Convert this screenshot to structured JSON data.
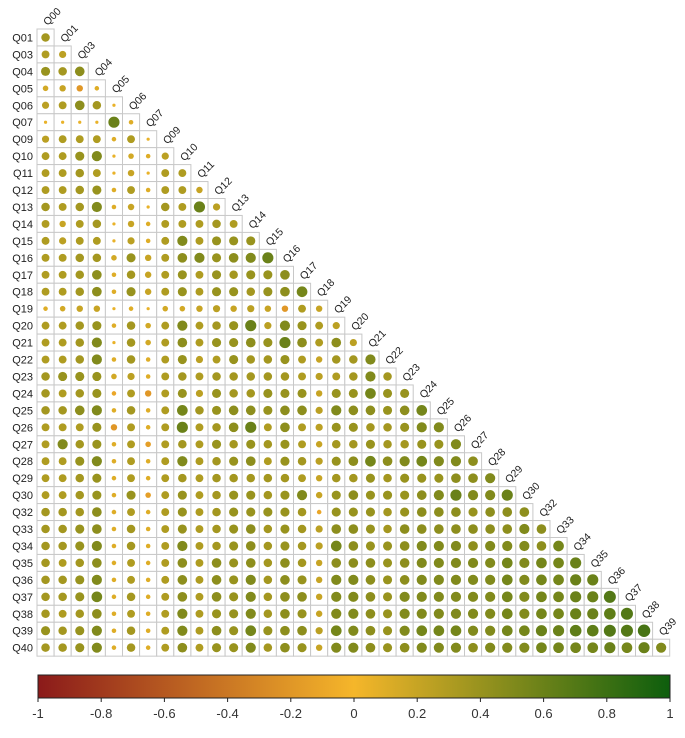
{
  "chart_data": {
    "type": "heatmap",
    "subtype": "correlation-matrix-lower-triangle",
    "marker": "circle-size-and-color",
    "rows": [
      "Q01",
      "Q03",
      "Q04",
      "Q05",
      "Q06",
      "Q07",
      "Q09",
      "Q10",
      "Q11",
      "Q12",
      "Q13",
      "Q14",
      "Q15",
      "Q16",
      "Q17",
      "Q18",
      "Q19",
      "Q20",
      "Q21",
      "Q22",
      "Q23",
      "Q24",
      "Q25",
      "Q26",
      "Q27",
      "Q28",
      "Q29",
      "Q30",
      "Q32",
      "Q33",
      "Q34",
      "Q35",
      "Q36",
      "Q37",
      "Q38",
      "Q39",
      "Q40"
    ],
    "columns": [
      "Q00",
      "Q01",
      "Q03",
      "Q04",
      "Q05",
      "Q06",
      "Q07",
      "Q09",
      "Q10",
      "Q11",
      "Q12",
      "Q13",
      "Q14",
      "Q15",
      "Q16",
      "Q17",
      "Q18",
      "Q19",
      "Q20",
      "Q21",
      "Q22",
      "Q23",
      "Q24",
      "Q25",
      "Q26",
      "Q27",
      "Q28",
      "Q29",
      "Q30",
      "Q32",
      "Q33",
      "Q34",
      "Q35",
      "Q36",
      "Q37",
      "Q38",
      "Q39"
    ],
    "values": [
      [
        0.35
      ],
      [
        0.3,
        0.25
      ],
      [
        0.4,
        0.35,
        0.45
      ],
      [
        0.15,
        0.2,
        -0.2,
        0.1
      ],
      [
        0.25,
        0.3,
        0.45,
        0.35,
        0.05
      ],
      [
        0.05,
        0.05,
        0.05,
        0.05,
        0.6,
        0.1
      ],
      [
        0.25,
        0.3,
        0.3,
        0.3,
        0.1,
        0.3,
        0.05
      ],
      [
        0.3,
        0.3,
        0.4,
        0.5,
        0.05,
        0.15,
        0.1,
        0.25
      ],
      [
        0.3,
        0.3,
        0.35,
        0.3,
        0.05,
        0.2,
        0.05,
        0.3,
        0.3
      ],
      [
        0.3,
        0.3,
        0.35,
        0.4,
        0.1,
        0.3,
        0.1,
        0.3,
        0.3,
        0.2
      ],
      [
        0.35,
        0.3,
        0.35,
        0.5,
        0.1,
        0.2,
        0.05,
        0.35,
        0.3,
        0.6,
        0.25
      ],
      [
        0.3,
        0.2,
        0.3,
        0.35,
        0.05,
        0.2,
        0.1,
        0.3,
        0.3,
        0.3,
        0.35,
        0.3
      ],
      [
        0.3,
        0.25,
        0.3,
        0.3,
        0.05,
        0.25,
        0.1,
        0.3,
        0.5,
        0.3,
        0.4,
        0.4,
        0.4
      ],
      [
        0.3,
        0.3,
        0.35,
        0.35,
        0.15,
        0.4,
        0.2,
        0.3,
        0.45,
        0.5,
        0.4,
        0.45,
        0.5,
        0.6
      ],
      [
        0.3,
        0.3,
        0.35,
        0.45,
        0.1,
        0.35,
        0.2,
        0.3,
        0.4,
        0.3,
        0.4,
        0.35,
        0.4,
        0.4,
        0.45
      ],
      [
        0.3,
        0.3,
        0.35,
        0.45,
        0.1,
        0.4,
        0.2,
        0.3,
        0.4,
        0.3,
        0.4,
        0.4,
        0.35,
        0.4,
        0.45,
        0.55
      ],
      [
        0.1,
        0.15,
        0.2,
        0.2,
        0.05,
        0.1,
        0.05,
        0.15,
        0.15,
        0.2,
        0.25,
        0.2,
        0.25,
        0.2,
        -0.2,
        0.3,
        0.2
      ],
      [
        0.3,
        0.3,
        0.35,
        0.4,
        0.1,
        0.35,
        0.15,
        0.3,
        0.5,
        0.3,
        0.35,
        0.4,
        0.6,
        0.25,
        0.5,
        0.4,
        0.3,
        0.25
      ],
      [
        0.3,
        0.3,
        0.35,
        0.5,
        0.05,
        0.35,
        0.15,
        0.3,
        0.45,
        0.3,
        0.4,
        0.4,
        0.45,
        0.4,
        0.6,
        0.45,
        0.3,
        0.45,
        0.25
      ],
      [
        0.3,
        0.3,
        0.35,
        0.5,
        0.1,
        0.35,
        0.1,
        0.3,
        0.4,
        0.25,
        0.3,
        0.4,
        0.35,
        0.35,
        0.4,
        0.3,
        0.2,
        0.35,
        0.35,
        0.5
      ],
      [
        0.35,
        0.4,
        0.4,
        0.4,
        0.15,
        0.25,
        0.1,
        0.3,
        0.35,
        0.3,
        0.35,
        0.35,
        0.35,
        0.35,
        0.35,
        0.3,
        0.25,
        0.3,
        0.35,
        0.5,
        0.35
      ],
      [
        0.35,
        0.3,
        0.35,
        0.4,
        -0.1,
        0.3,
        -0.2,
        0.3,
        0.4,
        0.25,
        0.4,
        0.35,
        0.35,
        0.4,
        0.4,
        0.4,
        0.2,
        0.4,
        0.4,
        0.55,
        0.4,
        0.4
      ],
      [
        0.35,
        0.35,
        0.45,
        0.5,
        0.1,
        0.35,
        0.1,
        0.3,
        0.55,
        0.35,
        0.4,
        0.45,
        0.45,
        0.4,
        0.45,
        0.45,
        0.25,
        0.5,
        0.45,
        0.45,
        0.4,
        0.45,
        0.55
      ],
      [
        0.3,
        0.3,
        0.3,
        0.4,
        -0.2,
        0.3,
        0.1,
        0.3,
        0.6,
        0.3,
        0.35,
        0.45,
        0.6,
        0.3,
        0.45,
        0.3,
        0.25,
        0.4,
        0.4,
        0.35,
        0.35,
        0.4,
        0.5,
        0.5
      ],
      [
        0.3,
        0.5,
        0.35,
        0.4,
        0.1,
        0.3,
        -0.15,
        0.3,
        0.35,
        0.3,
        0.4,
        0.35,
        0.4,
        0.35,
        0.4,
        0.3,
        0.2,
        0.35,
        0.35,
        0.4,
        0.35,
        0.35,
        0.4,
        0.4,
        0.5
      ],
      [
        0.3,
        0.3,
        0.4,
        0.5,
        0.1,
        0.3,
        0.1,
        0.3,
        0.5,
        0.3,
        0.35,
        0.4,
        0.45,
        0.3,
        0.4,
        0.35,
        0.25,
        0.4,
        0.45,
        0.55,
        0.45,
        0.5,
        0.55,
        0.5,
        0.5,
        0.45
      ],
      [
        0.3,
        0.3,
        0.35,
        0.4,
        0.1,
        0.3,
        0.1,
        0.3,
        0.35,
        0.3,
        0.35,
        0.35,
        0.35,
        0.35,
        0.35,
        0.3,
        0.2,
        0.35,
        0.35,
        0.4,
        0.35,
        0.4,
        0.4,
        0.4,
        0.45,
        0.45,
        0.5
      ],
      [
        0.3,
        0.3,
        0.35,
        0.4,
        0.1,
        0.4,
        -0.15,
        0.3,
        0.4,
        0.3,
        0.35,
        0.4,
        0.4,
        0.35,
        0.4,
        0.5,
        0.2,
        0.4,
        0.45,
        0.4,
        0.4,
        0.4,
        0.45,
        0.5,
        0.6,
        0.5,
        0.5,
        0.6
      ],
      [
        0.35,
        0.35,
        0.35,
        0.45,
        0.1,
        0.3,
        0.1,
        0.3,
        0.4,
        0.3,
        0.35,
        0.4,
        0.4,
        0.4,
        0.4,
        0.35,
        -0.1,
        0.4,
        0.4,
        0.4,
        0.35,
        0.4,
        0.45,
        0.45,
        0.45,
        0.4,
        0.45,
        0.45,
        0.45
      ],
      [
        0.35,
        0.35,
        0.4,
        0.45,
        0.1,
        0.35,
        0.1,
        0.3,
        0.4,
        0.3,
        0.35,
        0.4,
        0.45,
        0.35,
        0.4,
        0.35,
        0.25,
        0.45,
        0.45,
        0.4,
        0.35,
        0.45,
        0.45,
        0.45,
        0.45,
        0.45,
        0.45,
        0.45,
        0.5,
        0.45
      ],
      [
        0.35,
        0.35,
        0.4,
        0.5,
        0.1,
        0.35,
        0.1,
        0.3,
        0.5,
        0.3,
        0.35,
        0.4,
        0.45,
        0.35,
        0.4,
        0.35,
        0.25,
        0.55,
        0.45,
        0.4,
        0.4,
        0.45,
        0.5,
        0.5,
        0.5,
        0.45,
        0.5,
        0.5,
        0.5,
        0.45,
        0.55
      ],
      [
        0.35,
        0.3,
        0.35,
        0.45,
        0.1,
        0.3,
        0.1,
        0.3,
        0.45,
        0.3,
        0.45,
        0.4,
        0.45,
        0.35,
        0.45,
        0.35,
        0.2,
        0.45,
        0.45,
        0.45,
        0.4,
        0.45,
        0.5,
        0.5,
        0.5,
        0.5,
        0.5,
        0.55,
        0.5,
        0.55,
        0.55,
        0.6
      ],
      [
        0.35,
        0.35,
        0.4,
        0.5,
        0.1,
        0.3,
        0.1,
        0.3,
        0.45,
        0.3,
        0.45,
        0.4,
        0.5,
        0.35,
        0.45,
        0.4,
        0.2,
        0.5,
        0.5,
        0.45,
        0.4,
        0.45,
        0.5,
        0.5,
        0.5,
        0.5,
        0.5,
        0.55,
        0.5,
        0.55,
        0.55,
        0.6,
        0.6
      ],
      [
        0.35,
        0.35,
        0.4,
        0.55,
        0.1,
        0.35,
        0.1,
        0.3,
        0.45,
        0.3,
        0.45,
        0.4,
        0.5,
        0.35,
        0.45,
        0.45,
        0.2,
        0.5,
        0.5,
        0.45,
        0.4,
        0.5,
        0.5,
        0.5,
        0.5,
        0.5,
        0.5,
        0.55,
        0.5,
        0.55,
        0.55,
        0.6,
        0.6,
        0.7
      ],
      [
        0.35,
        0.3,
        0.35,
        0.45,
        0.1,
        0.3,
        0.1,
        0.3,
        0.5,
        0.3,
        0.4,
        0.4,
        0.5,
        0.35,
        0.45,
        0.4,
        0.2,
        0.5,
        0.5,
        0.45,
        0.4,
        0.5,
        0.5,
        0.5,
        0.5,
        0.5,
        0.5,
        0.55,
        0.5,
        0.55,
        0.55,
        0.6,
        0.6,
        0.65,
        0.7
      ],
      [
        0.4,
        0.35,
        0.4,
        0.5,
        0.1,
        0.35,
        0.1,
        0.3,
        0.5,
        0.3,
        0.45,
        0.4,
        0.55,
        0.4,
        0.45,
        0.45,
        0.25,
        0.55,
        0.5,
        0.45,
        0.4,
        0.5,
        0.55,
        0.55,
        0.55,
        0.5,
        0.5,
        0.55,
        0.55,
        0.6,
        0.6,
        0.65,
        0.65,
        0.7,
        0.7,
        0.75
      ],
      [
        0.35,
        0.35,
        0.4,
        0.5,
        0.1,
        0.35,
        0.1,
        0.3,
        0.45,
        0.3,
        0.4,
        0.4,
        0.5,
        0.35,
        0.45,
        0.4,
        0.2,
        0.5,
        0.5,
        0.45,
        0.4,
        0.45,
        0.5,
        0.5,
        0.5,
        0.45,
        0.5,
        0.5,
        0.5,
        0.55,
        0.55,
        0.55,
        0.55,
        0.6,
        0.55,
        0.6,
        0.5
      ]
    ],
    "color_scale": {
      "min": -1,
      "max": 1,
      "ticks": [
        "-1",
        "-0.8",
        "-0.6",
        "-0.4",
        "-0.2",
        "0",
        "0.2",
        "0.4",
        "0.6",
        "0.8",
        "1"
      ],
      "colors": [
        "#8b1a1a",
        "#f5b62a",
        "#0d5e0d"
      ]
    },
    "title": "",
    "xlabel": "",
    "ylabel": "",
    "legend": "bottom"
  }
}
